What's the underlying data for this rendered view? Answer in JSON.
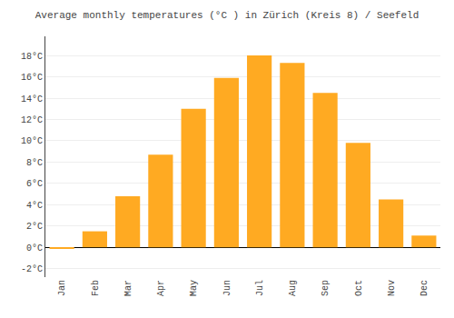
{
  "chart_data": {
    "type": "bar",
    "title": "Average monthly temperatures (°C ) in Zürich (Kreis 8) / Seefeld",
    "categories": [
      "Jan",
      "Feb",
      "Mar",
      "Apr",
      "May",
      "Jun",
      "Jul",
      "Aug",
      "Sep",
      "Oct",
      "Nov",
      "Dec"
    ],
    "values": [
      -0.1,
      1.5,
      4.8,
      8.7,
      13.0,
      15.9,
      18.0,
      17.3,
      14.5,
      9.8,
      4.5,
      1.1
    ],
    "color": "#FFAA22",
    "ylim": [
      -2.8,
      19.8
    ],
    "yticks": [
      {
        "value": -2,
        "label": "-2°C"
      },
      {
        "value": 0,
        "label": "0°C"
      },
      {
        "value": 2,
        "label": "2°C"
      },
      {
        "value": 4,
        "label": "4°C"
      },
      {
        "value": 6,
        "label": "6°C"
      },
      {
        "value": 8,
        "label": "8°C"
      },
      {
        "value": 10,
        "label": "10°C"
      },
      {
        "value": 12,
        "label": "12°C"
      },
      {
        "value": 14,
        "label": "14°C"
      },
      {
        "value": 16,
        "label": "16°C"
      },
      {
        "value": 18,
        "label": "18°C"
      }
    ],
    "grid": true
  }
}
